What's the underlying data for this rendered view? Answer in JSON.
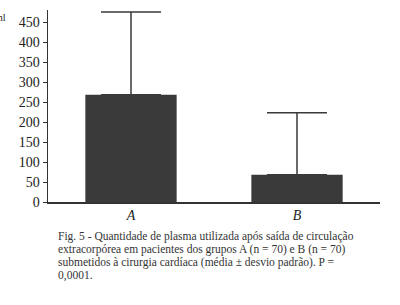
{
  "chart_data": {
    "type": "bar",
    "ylabel": "ml",
    "categories": [
      "A",
      "B"
    ],
    "values": [
      268,
      68
    ],
    "errors": [
      207,
      155
    ],
    "color": "#3a3a3a",
    "ylim": [
      0,
      480
    ],
    "yticks": [
      0,
      50,
      100,
      150,
      200,
      250,
      300,
      350,
      400,
      450
    ],
    "grid": false,
    "caption": "Fig. 5 - Quantidade de plasma utilizada após saída de circulação extracorpórea em pacientes dos grupos A (n = 70) e B (n = 70) submetidos à cirurgia cardíaca (média ± desvio padrão). P = 0,0001."
  }
}
